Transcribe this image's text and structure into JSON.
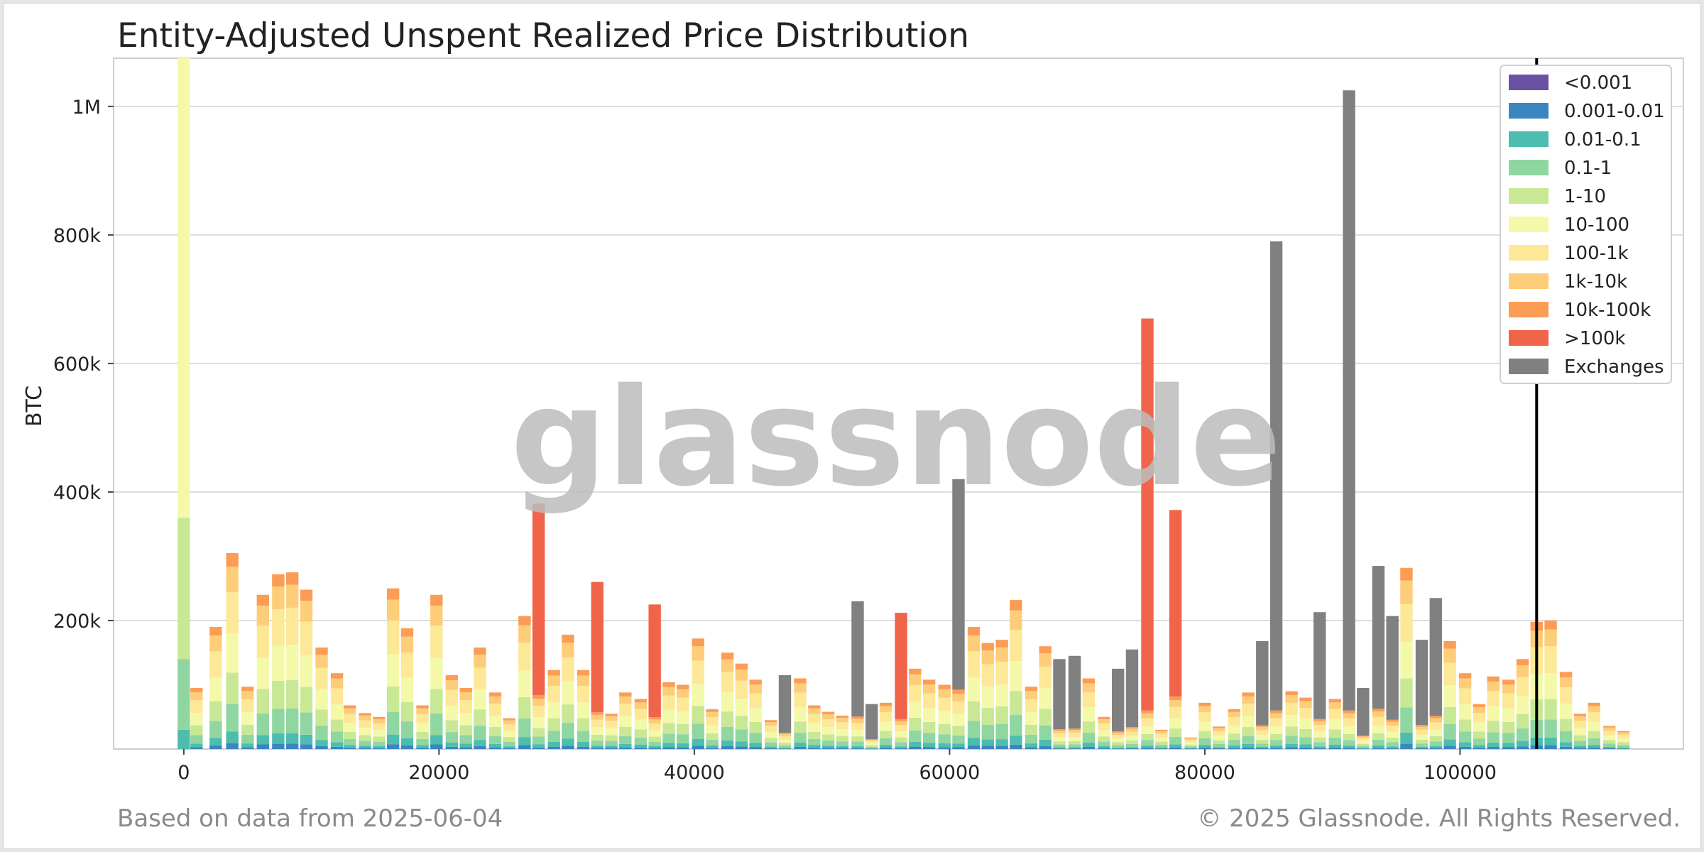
{
  "title": "Entity-Adjusted Unspent Realized Price Distribution",
  "footer": {
    "left": "Based on data from 2025-06-04",
    "right": "© 2025 Glassnode. All Rights Reserved."
  },
  "watermark": "glassnode",
  "chart_data": {
    "type": "bar",
    "stacked": true,
    "title": "Entity-Adjusted Unspent Realized Price Distribution",
    "xlabel": "",
    "ylabel": "BTC",
    "xlim": [
      -5500,
      117500
    ],
    "ylim": [
      0,
      1075000
    ],
    "x_ticks": [
      0,
      20000,
      40000,
      60000,
      80000,
      100000
    ],
    "x_tick_labels": [
      "0",
      "20000",
      "40000",
      "60000",
      "80000",
      "100000"
    ],
    "y_ticks": [
      200000,
      400000,
      600000,
      800000,
      1000000
    ],
    "y_tick_labels": [
      "200k",
      "400k",
      "600k",
      "800k",
      "1M"
    ],
    "grid": true,
    "legend_position": "top-right",
    "bin_width": 1100,
    "current_price_line": 106000,
    "series": [
      {
        "name": "<0.001",
        "color": "#6a51a3"
      },
      {
        "name": "0.001-0.01",
        "color": "#3a86c0"
      },
      {
        "name": "0.01-0.1",
        "color": "#4cbdaf"
      },
      {
        "name": "0.1-1",
        "color": "#8fd6a0"
      },
      {
        "name": "1-10",
        "color": "#c8e896"
      },
      {
        "name": "10-100",
        "color": "#f3f9a9"
      },
      {
        "name": "100-1k",
        "color": "#fde898"
      },
      {
        "name": "1k-10k",
        "color": "#fdcd79"
      },
      {
        "name": "10k-100k",
        "color": "#fc9d56"
      },
      {
        "name": ">100k",
        "color": "#f0654a"
      },
      {
        "name": "Exchanges",
        "color": "#808080"
      }
    ],
    "bins": [
      {
        "x": 0,
        "total": 1075000,
        "top": "mixed"
      },
      {
        "x": 1000,
        "total": 95000,
        "top": "mixed"
      },
      {
        "x": 2500,
        "total": 190000,
        "top": "mixed"
      },
      {
        "x": 3800,
        "total": 305000,
        "top": "mixed"
      },
      {
        "x": 5000,
        "total": 97000,
        "top": "mixed"
      },
      {
        "x": 6200,
        "total": 240000,
        "top": "mixed"
      },
      {
        "x": 7400,
        "total": 272000,
        "top": "mixed"
      },
      {
        "x": 8500,
        "total": 275000,
        "top": "mixed"
      },
      {
        "x": 9600,
        "total": 248000,
        "top": "mixed"
      },
      {
        "x": 10800,
        "total": 158000,
        "top": "mixed"
      },
      {
        "x": 12000,
        "total": 118000,
        "top": "mixed"
      },
      {
        "x": 13000,
        "total": 68000,
        "top": "mixed"
      },
      {
        "x": 14200,
        "total": 56000,
        "top": "mixed"
      },
      {
        "x": 15300,
        "total": 50000,
        "top": "mixed"
      },
      {
        "x": 16400,
        "total": 250000,
        "top": "mixed"
      },
      {
        "x": 17500,
        "total": 188000,
        "top": "mixed"
      },
      {
        "x": 18700,
        "total": 68000,
        "top": "mixed"
      },
      {
        "x": 19800,
        "total": 240000,
        "top": "mixed"
      },
      {
        "x": 21000,
        "total": 115000,
        "top": "mixed"
      },
      {
        "x": 22100,
        "total": 95000,
        "top": "mixed"
      },
      {
        "x": 23200,
        "total": 158000,
        "top": "mixed"
      },
      {
        "x": 24400,
        "total": 88000,
        "top": "mixed"
      },
      {
        "x": 25500,
        "total": 48000,
        "top": "mixed"
      },
      {
        "x": 26700,
        "total": 207000,
        "top": "mixed"
      },
      {
        "x": 27800,
        "total": 382000,
        "top": ">100k"
      },
      {
        "x": 29000,
        "total": 123000,
        "top": "mixed"
      },
      {
        "x": 30100,
        "total": 178000,
        "top": "mixed"
      },
      {
        "x": 31300,
        "total": 123000,
        "top": "mixed"
      },
      {
        "x": 32400,
        "total": 260000,
        "top": ">100k"
      },
      {
        "x": 33500,
        "total": 55000,
        "top": "mixed"
      },
      {
        "x": 34600,
        "total": 88000,
        "top": "mixed"
      },
      {
        "x": 35800,
        "total": 78000,
        "top": "mixed"
      },
      {
        "x": 36900,
        "total": 225000,
        "top": ">100k"
      },
      {
        "x": 38000,
        "total": 104000,
        "top": "mixed"
      },
      {
        "x": 39100,
        "total": 100000,
        "top": "mixed"
      },
      {
        "x": 40300,
        "total": 172000,
        "top": "mixed"
      },
      {
        "x": 41400,
        "total": 62000,
        "top": "mixed"
      },
      {
        "x": 42600,
        "total": 150000,
        "top": "mixed"
      },
      {
        "x": 43700,
        "total": 133000,
        "top": "mixed"
      },
      {
        "x": 44800,
        "total": 108000,
        "top": "mixed"
      },
      {
        "x": 46000,
        "total": 45000,
        "top": "mixed"
      },
      {
        "x": 47100,
        "total": 115000,
        "top": "Exchanges"
      },
      {
        "x": 48300,
        "total": 110000,
        "top": "mixed"
      },
      {
        "x": 49400,
        "total": 68000,
        "top": "mixed"
      },
      {
        "x": 50500,
        "total": 58000,
        "top": "mixed"
      },
      {
        "x": 51600,
        "total": 52000,
        "top": "mixed"
      },
      {
        "x": 52800,
        "total": 230000,
        "top": "Exchanges"
      },
      {
        "x": 53900,
        "total": 70000,
        "top": "Exchanges"
      },
      {
        "x": 55000,
        "total": 72000,
        "top": "mixed"
      },
      {
        "x": 56200,
        "total": 212000,
        "top": ">100k"
      },
      {
        "x": 57300,
        "total": 125000,
        "top": "mixed"
      },
      {
        "x": 58400,
        "total": 108000,
        "top": "mixed"
      },
      {
        "x": 59600,
        "total": 100000,
        "top": "mixed"
      },
      {
        "x": 60700,
        "total": 420000,
        "top": "Exchanges"
      },
      {
        "x": 61900,
        "total": 190000,
        "top": "mixed"
      },
      {
        "x": 63000,
        "total": 165000,
        "top": "mixed"
      },
      {
        "x": 64100,
        "total": 170000,
        "top": "mixed"
      },
      {
        "x": 65200,
        "total": 232000,
        "top": "mixed"
      },
      {
        "x": 66400,
        "total": 97000,
        "top": "mixed"
      },
      {
        "x": 67500,
        "total": 160000,
        "top": "mixed"
      },
      {
        "x": 68600,
        "total": 140000,
        "top": "Exchanges"
      },
      {
        "x": 69800,
        "total": 145000,
        "top": "Exchanges"
      },
      {
        "x": 70900,
        "total": 110000,
        "top": "mixed"
      },
      {
        "x": 72100,
        "total": 50000,
        "top": "mixed"
      },
      {
        "x": 73200,
        "total": 125000,
        "top": "Exchanges"
      },
      {
        "x": 74300,
        "total": 155000,
        "top": "Exchanges"
      },
      {
        "x": 75500,
        "total": 670000,
        "top": ">100k"
      },
      {
        "x": 76600,
        "total": 30000,
        "top": "mixed"
      },
      {
        "x": 77700,
        "total": 372000,
        "top": ">100k"
      },
      {
        "x": 78900,
        "total": 18000,
        "top": "mixed"
      },
      {
        "x": 80000,
        "total": 72000,
        "top": "mixed"
      },
      {
        "x": 81100,
        "total": 35000,
        "top": "mixed"
      },
      {
        "x": 82300,
        "total": 62000,
        "top": "mixed"
      },
      {
        "x": 83400,
        "total": 88000,
        "top": "mixed"
      },
      {
        "x": 84500,
        "total": 168000,
        "top": "Exchanges"
      },
      {
        "x": 85600,
        "total": 790000,
        "top": "Exchanges"
      },
      {
        "x": 86800,
        "total": 90000,
        "top": "mixed"
      },
      {
        "x": 87900,
        "total": 80000,
        "top": "mixed"
      },
      {
        "x": 89000,
        "total": 213000,
        "top": "Exchanges"
      },
      {
        "x": 90200,
        "total": 78000,
        "top": "mixed"
      },
      {
        "x": 91300,
        "total": 1025000,
        "top": "Exchanges"
      },
      {
        "x": 92400,
        "total": 95000,
        "top": "Exchanges"
      },
      {
        "x": 93600,
        "total": 285000,
        "top": "Exchanges"
      },
      {
        "x": 94700,
        "total": 207000,
        "top": "Exchanges"
      },
      {
        "x": 95800,
        "total": 282000,
        "top": "mixed"
      },
      {
        "x": 97000,
        "total": 170000,
        "top": "Exchanges"
      },
      {
        "x": 98100,
        "total": 235000,
        "top": "Exchanges"
      },
      {
        "x": 99200,
        "total": 168000,
        "top": "mixed"
      },
      {
        "x": 100400,
        "total": 118000,
        "top": "mixed"
      },
      {
        "x": 101500,
        "total": 70000,
        "top": "mixed"
      },
      {
        "x": 102600,
        "total": 113000,
        "top": "mixed"
      },
      {
        "x": 103800,
        "total": 108000,
        "top": "mixed"
      },
      {
        "x": 104900,
        "total": 140000,
        "top": "mixed"
      },
      {
        "x": 106000,
        "total": 198000,
        "top": "mixed"
      },
      {
        "x": 107100,
        "total": 200000,
        "top": "mixed"
      },
      {
        "x": 108300,
        "total": 120000,
        "top": "mixed"
      },
      {
        "x": 109400,
        "total": 55000,
        "top": "mixed"
      },
      {
        "x": 110500,
        "total": 72000,
        "top": "mixed"
      },
      {
        "x": 111700,
        "total": 36000,
        "top": "mixed"
      },
      {
        "x": 112800,
        "total": 28000,
        "top": "mixed"
      }
    ]
  }
}
